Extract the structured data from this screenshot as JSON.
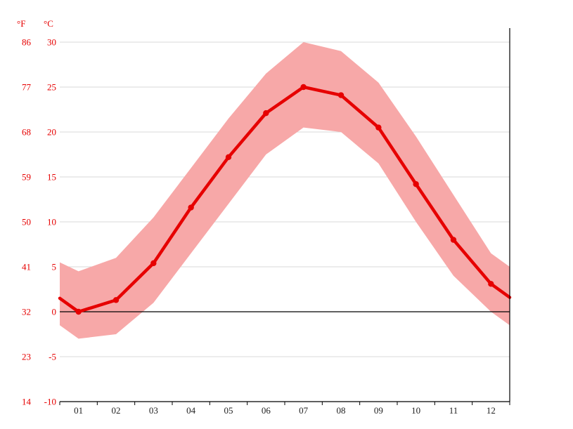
{
  "chart_data": {
    "type": "line",
    "title": "",
    "description": "Monthly average temperature line with min-max band",
    "unit_labels": {
      "fahrenheit": "°F",
      "celsius": "°C"
    },
    "x_tick_labels": [
      "01",
      "02",
      "03",
      "04",
      "05",
      "06",
      "07",
      "08",
      "09",
      "10",
      "11",
      "12"
    ],
    "y_axis": {
      "celsius_ticks": [
        30,
        25,
        20,
        15,
        10,
        5,
        0,
        -5,
        -10
      ],
      "fahrenheit_ticks": [
        86,
        77,
        68,
        59,
        50,
        41,
        32,
        23,
        14
      ],
      "ylim_celsius": [
        -10,
        30
      ]
    },
    "series": [
      {
        "name": "mean-temperature-c",
        "values": [
          0,
          1.3,
          5.4,
          11.6,
          17.2,
          22.1,
          25,
          24.1,
          20.5,
          14.2,
          8,
          3.1
        ],
        "edge_start": 1.5,
        "edge_end": 1.6
      },
      {
        "name": "max-temperature-c",
        "values": [
          4.5,
          6,
          10.5,
          16,
          21.5,
          26.5,
          30,
          29,
          25.5,
          19.5,
          13,
          6.5
        ],
        "edge_start": 5.5,
        "edge_end": 5
      },
      {
        "name": "min-temperature-c",
        "values": [
          -3,
          -2.5,
          1,
          6.5,
          12,
          17.5,
          20.5,
          20,
          16.5,
          10,
          4,
          0
        ],
        "edge_start": -1.5,
        "edge_end": -1.5
      }
    ],
    "colors": {
      "mean_line": "#e60000",
      "band": "#f7a8a8",
      "grid": "#d9d9d9",
      "zero_line": "#000000",
      "axis_line": "#000000",
      "axis_value_label": "#e60000",
      "month_label": "#222222",
      "background": "#ffffff"
    },
    "grid": true,
    "legend_position": "none"
  }
}
